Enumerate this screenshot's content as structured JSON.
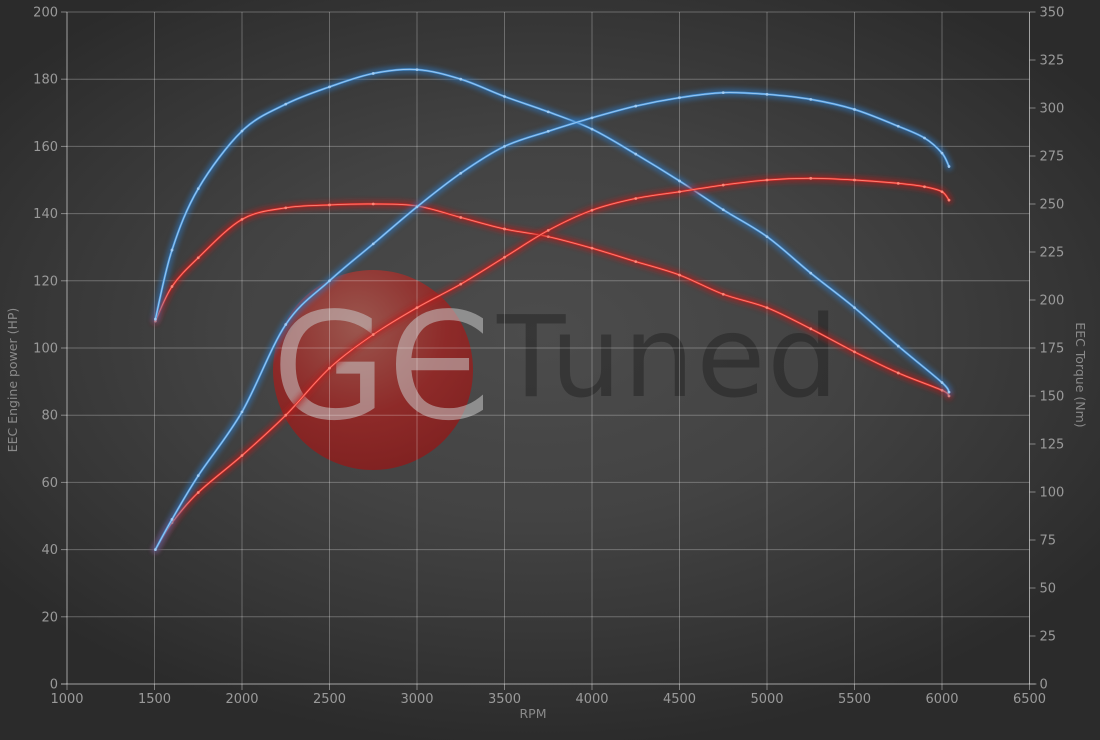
{
  "watermark": {
    "circle_text": "GЄ",
    "rest_text": "Tuned"
  },
  "colors": {
    "background_center": "#4c4c4c",
    "background_edge": "#2b2b2b",
    "grid": "rgba(255,255,255,0.27)",
    "axis_line": "rgba(255,255,255,0.40)",
    "tick_text": "#9a9a9a",
    "axis_title_text": "#8a8a8a",
    "watermark_circle": "#9d2422",
    "blue_curve": "#4a97dd",
    "red_curve": "#dd2a26"
  },
  "chart_data": {
    "type": "line",
    "title": "",
    "xlabel": "RPM",
    "ylabel_left": "EEC Engine power (HP)",
    "ylabel_right": "EEC Torque (Nm)",
    "x_range": [
      1000,
      6500
    ],
    "y_left_range": [
      0,
      200
    ],
    "y_right_range": [
      0,
      350
    ],
    "grid": true,
    "legend_position": "none",
    "x_ticks": [
      1000,
      1500,
      2000,
      2500,
      3000,
      3500,
      4000,
      4500,
      5000,
      5500,
      6000,
      6500
    ],
    "y_left_ticks": [
      0,
      20,
      40,
      60,
      80,
      100,
      120,
      140,
      160,
      180,
      200
    ],
    "y_right_ticks": [
      0,
      25,
      50,
      75,
      100,
      125,
      150,
      175,
      200,
      225,
      250,
      275,
      300,
      325,
      350
    ],
    "series": [
      {
        "id": "torque-red",
        "axis": "right",
        "unit": "Nm",
        "color": "#dd2a26",
        "color_core": "#ff8d7e",
        "color_glow": "#b51d1a",
        "peak": {
          "value": 250,
          "rpm": 2750
        },
        "points": [
          [
            1505,
            189
          ],
          [
            1600,
            207
          ],
          [
            1750,
            222
          ],
          [
            2000,
            242
          ],
          [
            2250,
            248
          ],
          [
            2500,
            249.5
          ],
          [
            2750,
            250
          ],
          [
            3000,
            249
          ],
          [
            3250,
            243
          ],
          [
            3500,
            237
          ],
          [
            3750,
            233
          ],
          [
            4000,
            227
          ],
          [
            4250,
            220
          ],
          [
            4500,
            213
          ],
          [
            4750,
            203
          ],
          [
            5000,
            196
          ],
          [
            5250,
            185
          ],
          [
            5500,
            173
          ],
          [
            5750,
            162
          ],
          [
            6000,
            153
          ],
          [
            6040,
            150
          ]
        ]
      },
      {
        "id": "torque-blue",
        "axis": "right",
        "unit": "Nm",
        "color": "#4a97dd",
        "color_core": "#a6cff4",
        "color_glow": "#2e76bc",
        "peak": {
          "value": 320,
          "rpm": 3000
        },
        "points": [
          [
            1505,
            190
          ],
          [
            1600,
            226
          ],
          [
            1750,
            258
          ],
          [
            2000,
            288
          ],
          [
            2250,
            302
          ],
          [
            2500,
            311
          ],
          [
            2750,
            318
          ],
          [
            3000,
            320
          ],
          [
            3250,
            315
          ],
          [
            3500,
            306
          ],
          [
            3750,
            298
          ],
          [
            4000,
            289
          ],
          [
            4250,
            276
          ],
          [
            4500,
            262
          ],
          [
            4750,
            247
          ],
          [
            5000,
            233
          ],
          [
            5250,
            214
          ],
          [
            5500,
            196
          ],
          [
            5750,
            176
          ],
          [
            6000,
            157
          ],
          [
            6040,
            152
          ]
        ]
      },
      {
        "id": "power-red",
        "axis": "left",
        "unit": "HP",
        "color": "#dd2a26",
        "color_core": "#ff8d7e",
        "color_glow": "#b51d1a",
        "peak": {
          "value": 150.5,
          "rpm": 5250
        },
        "points": [
          [
            1505,
            40
          ],
          [
            1600,
            48
          ],
          [
            1750,
            57
          ],
          [
            2000,
            68
          ],
          [
            2250,
            80
          ],
          [
            2500,
            94
          ],
          [
            2750,
            104
          ],
          [
            3000,
            112
          ],
          [
            3250,
            119
          ],
          [
            3500,
            127
          ],
          [
            3750,
            135
          ],
          [
            4000,
            141
          ],
          [
            4250,
            144.5
          ],
          [
            4500,
            146.5
          ],
          [
            4750,
            148.5
          ],
          [
            5000,
            150
          ],
          [
            5250,
            150.5
          ],
          [
            5500,
            150
          ],
          [
            5750,
            149
          ],
          [
            5900,
            148
          ],
          [
            6000,
            146.5
          ],
          [
            6040,
            144
          ]
        ]
      },
      {
        "id": "power-blue",
        "axis": "left",
        "unit": "HP",
        "color": "#4a97dd",
        "color_core": "#a6cff4",
        "color_glow": "#2e76bc",
        "peak": {
          "value": 176,
          "rpm": 4750
        },
        "points": [
          [
            1505,
            40
          ],
          [
            1600,
            49
          ],
          [
            1750,
            62
          ],
          [
            2000,
            81
          ],
          [
            2250,
            107
          ],
          [
            2500,
            120
          ],
          [
            2750,
            131
          ],
          [
            3000,
            142
          ],
          [
            3250,
            152
          ],
          [
            3500,
            160
          ],
          [
            3750,
            164.5
          ],
          [
            4000,
            168.5
          ],
          [
            4250,
            172
          ],
          [
            4500,
            174.5
          ],
          [
            4750,
            176
          ],
          [
            5000,
            175.5
          ],
          [
            5250,
            174
          ],
          [
            5500,
            171
          ],
          [
            5750,
            166
          ],
          [
            5900,
            162.5
          ],
          [
            6000,
            158
          ],
          [
            6040,
            154
          ]
        ]
      }
    ]
  }
}
